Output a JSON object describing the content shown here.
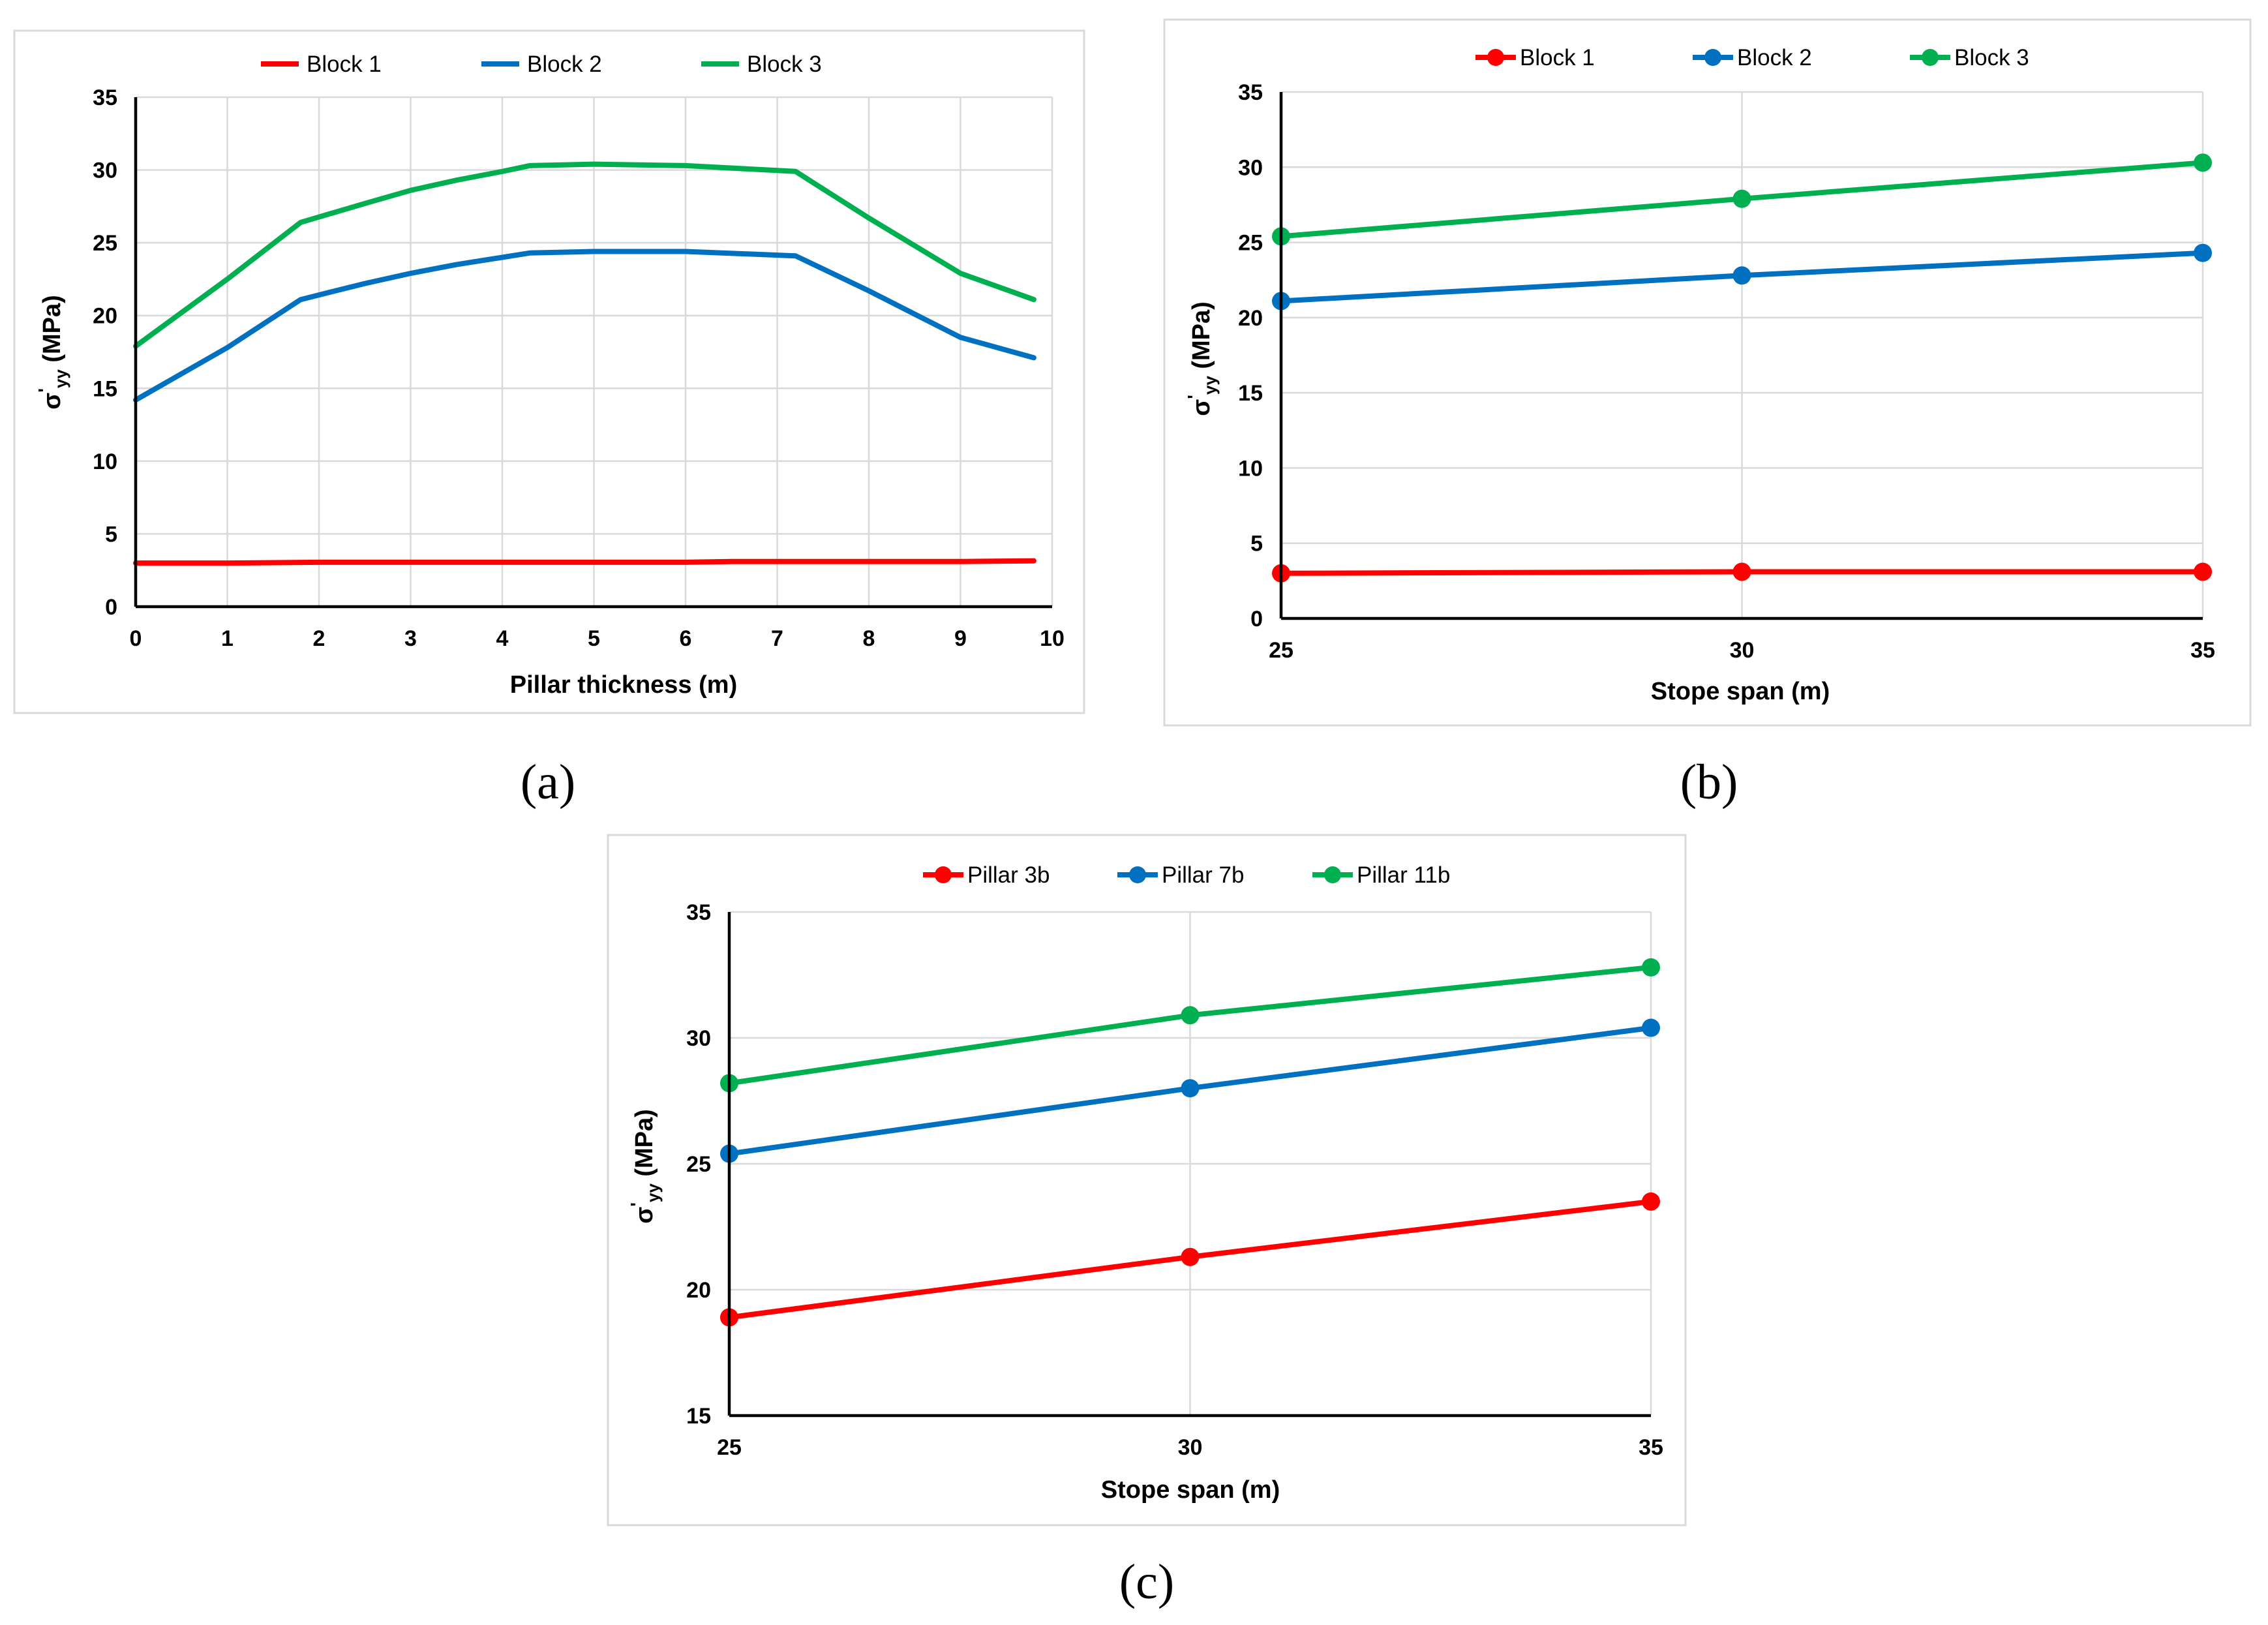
{
  "figure": {
    "panels": [
      {
        "label": "(a)"
      },
      {
        "label": "(b)"
      },
      {
        "label": "(c)"
      }
    ]
  },
  "chart_data": [
    {
      "id": "a",
      "type": "line",
      "title": "",
      "xlabel": "Pillar thickness (m)",
      "ylabel": "σ'yy (MPa)",
      "xlim": [
        0,
        10
      ],
      "ylim": [
        0,
        35
      ],
      "xticks": [
        0,
        1,
        2,
        3,
        4,
        5,
        6,
        7,
        8,
        9,
        10
      ],
      "yticks": [
        0,
        5,
        10,
        15,
        20,
        25,
        30,
        35
      ],
      "markers": false,
      "grid": true,
      "legend": "top",
      "series": [
        {
          "name": "Block 1",
          "color": "#ff0000",
          "x": [
            0,
            1,
            2,
            3,
            4,
            5,
            6,
            6.5,
            7,
            8,
            9,
            9.8
          ],
          "y": [
            3.0,
            3.0,
            3.05,
            3.05,
            3.05,
            3.05,
            3.05,
            3.1,
            3.1,
            3.1,
            3.1,
            3.15
          ]
        },
        {
          "name": "Block 2",
          "color": "#0070c0",
          "x": [
            0,
            1,
            1.8,
            2.5,
            3,
            3.5,
            4,
            4.3,
            5,
            6,
            7.2,
            8,
            9,
            9.8
          ],
          "y": [
            14.2,
            17.8,
            21.1,
            22.2,
            22.9,
            23.5,
            24.0,
            24.3,
            24.4,
            24.4,
            24.1,
            21.7,
            18.5,
            17.1
          ]
        },
        {
          "name": "Block 3",
          "color": "#00b050",
          "x": [
            0,
            1,
            1.8,
            2.5,
            3,
            3.5,
            4,
            4.3,
            5,
            6,
            7.2,
            8,
            9,
            9.8
          ],
          "y": [
            17.9,
            22.5,
            26.4,
            27.7,
            28.6,
            29.3,
            29.9,
            30.3,
            30.4,
            30.3,
            29.9,
            26.7,
            22.9,
            21.1
          ]
        }
      ]
    },
    {
      "id": "b",
      "type": "line",
      "title": "",
      "xlabel": "Stope span (m)",
      "ylabel": "σ'yy (MPa)",
      "xlim": [
        25,
        35
      ],
      "ylim": [
        0,
        35
      ],
      "xticks": [
        25,
        30,
        35
      ],
      "yticks": [
        0,
        5,
        10,
        15,
        20,
        25,
        30,
        35
      ],
      "markers": true,
      "grid": true,
      "legend": "top",
      "series": [
        {
          "name": "Block 1",
          "color": "#ff0000",
          "x": [
            25,
            30,
            35
          ],
          "y": [
            3.0,
            3.1,
            3.1
          ]
        },
        {
          "name": "Block 2",
          "color": "#0070c0",
          "x": [
            25,
            30,
            35
          ],
          "y": [
            21.1,
            22.8,
            24.3
          ]
        },
        {
          "name": "Block 3",
          "color": "#00b050",
          "x": [
            25,
            30,
            35
          ],
          "y": [
            25.4,
            27.9,
            30.3
          ]
        }
      ]
    },
    {
      "id": "c",
      "type": "line",
      "title": "",
      "xlabel": "Stope span (m)",
      "ylabel": "σ'yy (MPa)",
      "xlim": [
        25,
        35
      ],
      "ylim": [
        15,
        35
      ],
      "xticks": [
        25,
        30,
        35
      ],
      "yticks": [
        15,
        20,
        25,
        30,
        35
      ],
      "markers": true,
      "grid": true,
      "legend": "top",
      "series": [
        {
          "name": "Pillar 3b",
          "color": "#ff0000",
          "x": [
            25,
            30,
            35
          ],
          "y": [
            18.9,
            21.3,
            23.5
          ]
        },
        {
          "name": "Pillar 7b",
          "color": "#0070c0",
          "x": [
            25,
            30,
            35
          ],
          "y": [
            25.4,
            28.0,
            30.4
          ]
        },
        {
          "name": "Pillar 11b",
          "color": "#00b050",
          "x": [
            25,
            30,
            35
          ],
          "y": [
            28.2,
            30.9,
            32.8
          ]
        }
      ]
    }
  ]
}
